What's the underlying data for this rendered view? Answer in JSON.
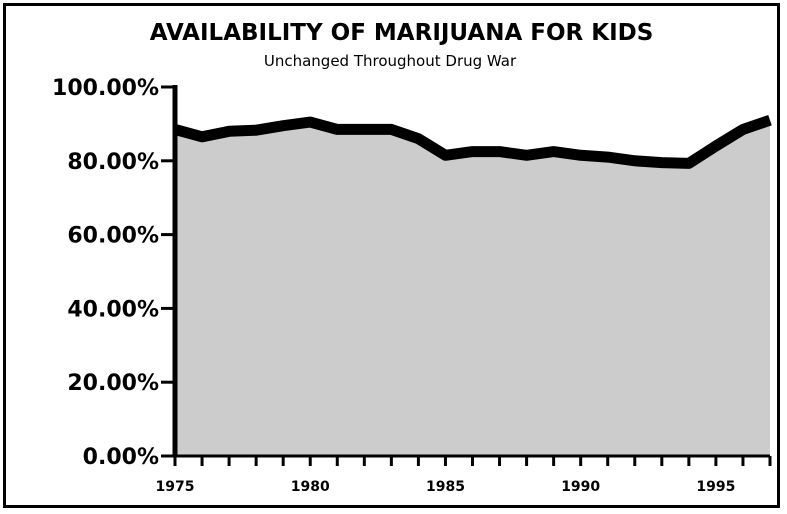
{
  "chart_data": {
    "type": "area",
    "title": "AVAILABILITY OF MARIJUANA FOR KIDS",
    "subtitle": "Unchanged Throughout Drug War",
    "xlabel": "",
    "ylabel": "",
    "x": [
      1975,
      1976,
      1977,
      1978,
      1979,
      1980,
      1981,
      1982,
      1983,
      1984,
      1985,
      1986,
      1987,
      1988,
      1989,
      1990,
      1991,
      1992,
      1993,
      1994,
      1995,
      1996,
      1997
    ],
    "series": [
      {
        "values": [
          88.5,
          86.5,
          88.0,
          88.3,
          89.5,
          90.5,
          88.5,
          88.5,
          88.5,
          86.0,
          81.5,
          82.5,
          82.5,
          81.5,
          82.5,
          81.5,
          81.0,
          80.0,
          79.5,
          79.3,
          84.0,
          88.5,
          91.0
        ]
      }
    ],
    "xlim": [
      1975,
      1997
    ],
    "ylim": [
      0,
      100
    ],
    "yticks": [
      "0.00%",
      "20.00%",
      "40.00%",
      "60.00%",
      "80.00%",
      "100.00%"
    ],
    "xticks": [
      "1975",
      "1980",
      "1985",
      "1990",
      "1995"
    ],
    "grid": false,
    "colors": {
      "fill": "#cccccc",
      "line": "#000000",
      "axis": "#000000",
      "background": "#ffffff"
    }
  }
}
